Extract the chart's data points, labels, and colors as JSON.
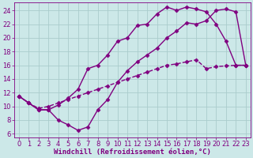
{
  "xlabel": "Windchill (Refroidissement éolien,°C)",
  "background_color": "#cce8e8",
  "line_color": "#800080",
  "grid_color": "#aacccc",
  "xlim": [
    -0.5,
    23.5
  ],
  "ylim": [
    5.5,
    25.2
  ],
  "yticks": [
    6,
    8,
    10,
    12,
    14,
    16,
    18,
    20,
    22,
    24
  ],
  "xticks": [
    0,
    1,
    2,
    3,
    4,
    5,
    6,
    7,
    8,
    9,
    10,
    11,
    12,
    13,
    14,
    15,
    16,
    17,
    18,
    19,
    20,
    21,
    22,
    23
  ],
  "line1_x": [
    0,
    1,
    2,
    3,
    4,
    5,
    6,
    7,
    8,
    9,
    10,
    11,
    12,
    13,
    14,
    15,
    16,
    17,
    18,
    19,
    20,
    21,
    22,
    23
  ],
  "line1_y": [
    11.5,
    10.5,
    9.5,
    9.5,
    8.0,
    7.3,
    6.5,
    7.0,
    9.5,
    11.0,
    13.5,
    15.2,
    16.5,
    17.5,
    18.5,
    20.0,
    21.0,
    22.2,
    22.0,
    22.5,
    24.0,
    24.2,
    23.8,
    16.0
  ],
  "line2_x": [
    0,
    1,
    2,
    3,
    4,
    5,
    6,
    7,
    8,
    9,
    10,
    11,
    12,
    13,
    14,
    15,
    16,
    17,
    18,
    19,
    20,
    21,
    22,
    23
  ],
  "line2_y": [
    11.5,
    10.5,
    9.5,
    9.5,
    10.2,
    11.2,
    12.5,
    15.5,
    16.0,
    17.5,
    19.5,
    20.0,
    21.8,
    22.0,
    23.5,
    24.5,
    24.0,
    24.5,
    24.2,
    23.8,
    22.0,
    19.5,
    16.0,
    16.0
  ],
  "line3_x": [
    0,
    1,
    2,
    3,
    4,
    5,
    6,
    7,
    8,
    9,
    10,
    11,
    12,
    13,
    14,
    15,
    16,
    17,
    18,
    19,
    20,
    21,
    22,
    23
  ],
  "line3_y": [
    11.5,
    10.5,
    9.7,
    10.0,
    10.5,
    11.0,
    11.5,
    12.0,
    12.5,
    13.0,
    13.5,
    14.0,
    14.5,
    15.0,
    15.5,
    16.0,
    16.2,
    16.5,
    16.8,
    15.5,
    15.8,
    15.9,
    16.0,
    16.0
  ],
  "marker": "D",
  "markersize": 2.5,
  "linewidth": 1.0,
  "xlabel_fontsize": 6.5,
  "tick_fontsize": 6.0,
  "fig_width": 3.2,
  "fig_height": 2.0,
  "dpi": 100
}
